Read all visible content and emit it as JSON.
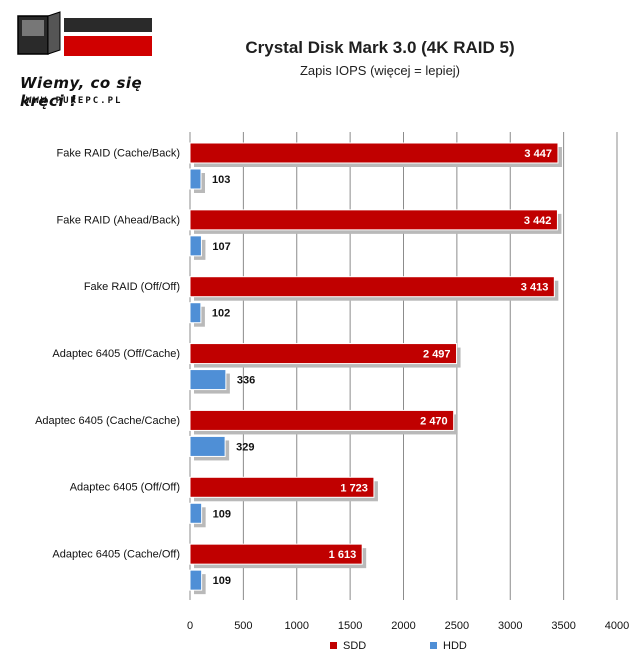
{
  "logo": {
    "brand": "PURE PC",
    "tagline": "Wiemy, co się kręci !",
    "url": "WWW.PUREPC.PL"
  },
  "chart_data": {
    "type": "bar",
    "orientation": "horizontal",
    "title": "Crystal Disk Mark 3.0 (4K RAID 5)",
    "subtitle": "Zapis IOPS (więcej = lepiej)",
    "categories": [
      "Fake RAID (Cache/Back)",
      "Fake RAID (Ahead/Back)",
      "Fake RAID (Off/Off)",
      "Adaptec 6405 (Off/Cache)",
      "Adaptec 6405 (Cache/Cache)",
      "Adaptec 6405 (Off/Off)",
      "Adaptec 6405 (Cache/Off)"
    ],
    "series": [
      {
        "name": "SDD",
        "color": "#c00000",
        "values": [
          3447,
          3442,
          3413,
          2497,
          2470,
          1723,
          1613
        ],
        "labels": [
          "3 447",
          "3 442",
          "3 413",
          "2 497",
          "2 470",
          "1 723",
          "1 613"
        ]
      },
      {
        "name": "HDD",
        "color": "#4f8fd6",
        "values": [
          103,
          107,
          102,
          336,
          329,
          109,
          109
        ],
        "labels": [
          "103",
          "107",
          "102",
          "336",
          "329",
          "109",
          "109"
        ]
      }
    ],
    "xlim": [
      0,
      4000
    ],
    "ticks": [
      "0",
      "500",
      "1000",
      "1500",
      "2000",
      "2500",
      "3000",
      "3500",
      "4000"
    ],
    "grid": "vertical",
    "legend": "bottom"
  }
}
